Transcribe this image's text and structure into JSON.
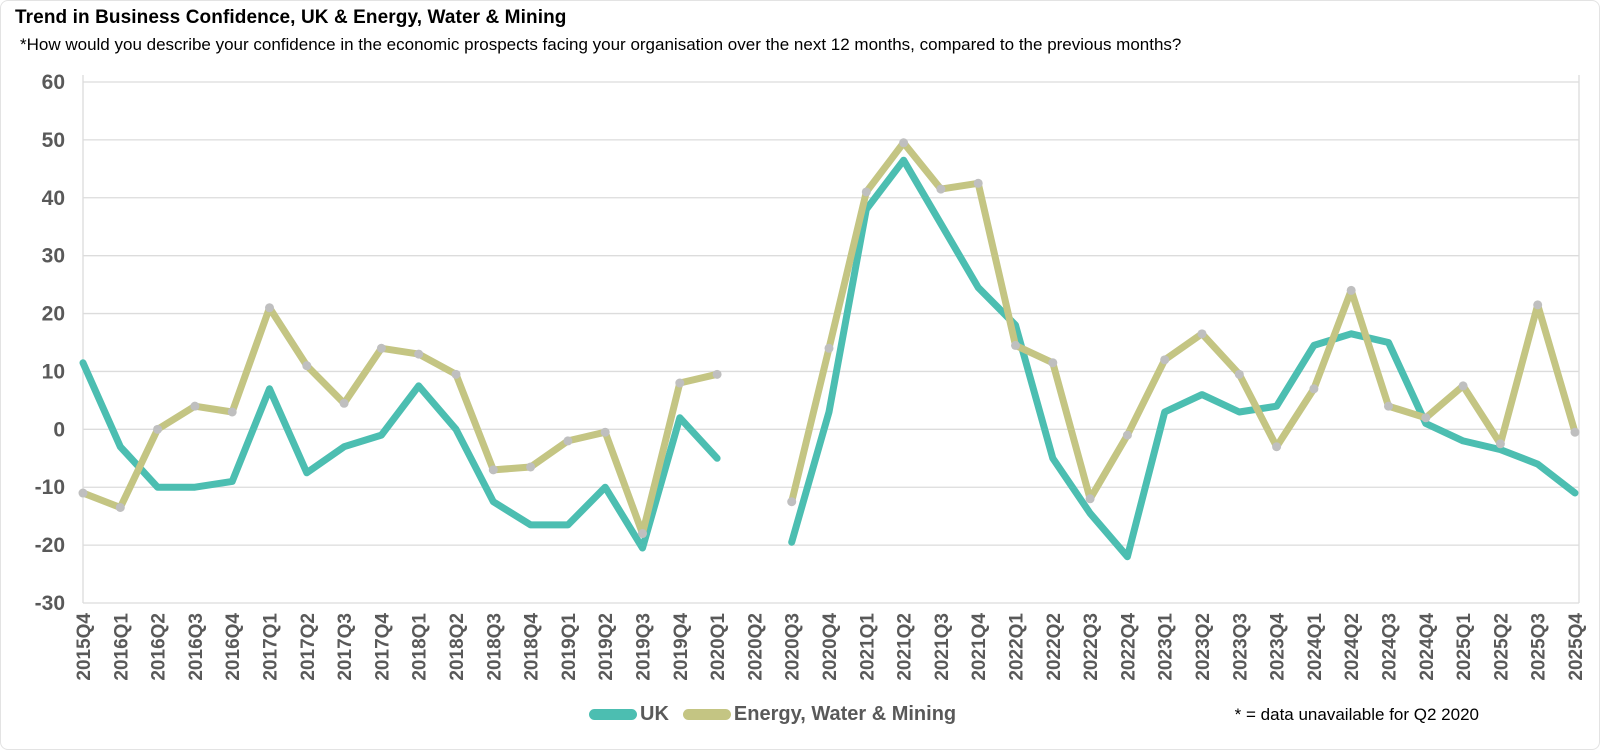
{
  "chart_data": {
    "type": "line",
    "title": "Trend in Business Confidence, UK & Energy, Water & Mining",
    "subtitle": "*How would you describe your confidence in the economic prospects facing your organisation over the next 12 months, compared to the previous months?",
    "footnote": "* = data unavailable for Q2 2020",
    "categories": [
      "2015Q4",
      "2016Q1",
      "2016Q2",
      "2016Q3",
      "2016Q4",
      "2017Q1",
      "2017Q2",
      "2017Q3",
      "2017Q4",
      "2018Q1",
      "2018Q2",
      "2018Q3",
      "2018Q4",
      "2019Q1",
      "2019Q2",
      "2019Q3",
      "2019Q4",
      "2020Q1",
      "2020Q2",
      "2020Q3",
      "2020Q4",
      "2021Q1",
      "2021Q2",
      "2021Q3",
      "2021Q4",
      "2022Q1",
      "2022Q2",
      "2022Q3",
      "2022Q4",
      "2023Q1",
      "2023Q2",
      "2023Q3",
      "2023Q4",
      "2024Q1",
      "2024Q2",
      "2024Q3",
      "2024Q4",
      "2025Q1",
      "2025Q2",
      "2025Q3",
      "2025Q4"
    ],
    "series": [
      {
        "name": "UK",
        "color": "#4cbeb1",
        "values": [
          11.5,
          -3,
          -10,
          -10,
          -9,
          7,
          -7.5,
          -3,
          -1,
          7.5,
          0,
          -12.5,
          -16.5,
          -16.5,
          -10,
          -20.5,
          2,
          -5,
          null,
          -19.5,
          3,
          38,
          46.5,
          35.5,
          24.5,
          18,
          -5,
          -14.5,
          -22,
          3,
          6,
          3,
          4,
          14.5,
          16.5,
          15,
          1,
          -2,
          -3.5,
          -6,
          -11
        ]
      },
      {
        "name": "Energy, Water & Mining",
        "color": "#c4c583",
        "values": [
          -11,
          -13.5,
          0,
          4,
          3,
          21,
          11,
          4.5,
          14,
          13,
          9.5,
          -7,
          -6.5,
          -2,
          -0.5,
          -18,
          8,
          9.5,
          null,
          -12.5,
          14,
          41,
          49.5,
          41.5,
          42.5,
          14.5,
          11.5,
          -12,
          -1,
          12,
          16.5,
          9.5,
          -3,
          7,
          24,
          4,
          2,
          7.5,
          -2.5,
          21.5,
          -0.5
        ]
      }
    ],
    "ylim": [
      -30,
      60
    ],
    "ytick_step": 10,
    "yticks": [
      60,
      50,
      40,
      30,
      20,
      10,
      0,
      -10,
      -20,
      -30
    ],
    "grid": "horizontal",
    "legend_position": "bottom",
    "gap_note_quarter": "2020Q2",
    "grid_color": "#dcdcdc",
    "axis_label_color": "#595959",
    "marker_color": "#bfbfbf"
  }
}
